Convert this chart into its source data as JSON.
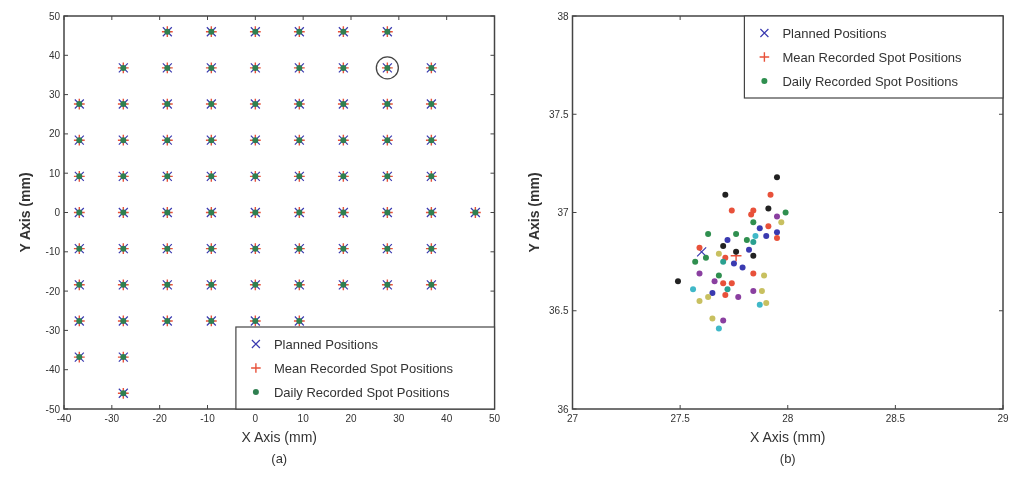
{
  "chart_data": [
    {
      "type": "scatter",
      "xlabel": "X Axis (mm)",
      "ylabel": "Y Axis (mm)",
      "annotations": [
        "(a)"
      ],
      "xlim": [
        -40,
        50
      ],
      "xticks": [
        -40,
        -30,
        -20,
        -10,
        0,
        10,
        20,
        30,
        40,
        50
      ],
      "ylim": [
        -50,
        50
      ],
      "yticks": [
        -50,
        -40,
        -30,
        -20,
        -10,
        0,
        10,
        20,
        30,
        40,
        50
      ],
      "legend": "bottom right",
      "grid": false,
      "series": [
        {
          "name": "Planned Positions",
          "color": "#3a3ab0",
          "marker": "x",
          "x": [
            -18.4,
            -9.2,
            0,
            9.2,
            18.4,
            27.6,
            -27.6,
            -18.4,
            -9.2,
            0,
            9.2,
            18.4,
            27.6,
            36.8,
            -36.8,
            -27.6,
            -18.4,
            -9.2,
            0,
            9.2,
            18.4,
            27.6,
            36.8,
            -36.8,
            -27.6,
            -18.4,
            -9.2,
            0,
            9.2,
            18.4,
            27.6,
            36.8,
            -36.8,
            -27.6,
            -18.4,
            -9.2,
            0,
            9.2,
            18.4,
            27.6,
            36.8,
            -36.8,
            -27.6,
            -18.4,
            -9.2,
            0,
            9.2,
            18.4,
            27.6,
            36.8,
            46,
            -36.8,
            -27.6,
            -18.4,
            -9.2,
            0,
            9.2,
            18.4,
            27.6,
            36.8,
            -36.8,
            -27.6,
            -18.4,
            -9.2,
            0,
            9.2,
            18.4,
            27.6,
            36.8,
            -36.8,
            -27.6,
            -18.4,
            -9.2,
            0,
            9.2,
            -36.8,
            -27.6,
            -27.6
          ],
          "values": [
            46,
            46,
            46,
            46,
            46,
            46,
            36.8,
            36.8,
            36.8,
            36.8,
            36.8,
            36.8,
            36.8,
            36.8,
            27.6,
            27.6,
            27.6,
            27.6,
            27.6,
            27.6,
            27.6,
            27.6,
            27.6,
            18.4,
            18.4,
            18.4,
            18.4,
            18.4,
            18.4,
            18.4,
            18.4,
            18.4,
            9.2,
            9.2,
            9.2,
            9.2,
            9.2,
            9.2,
            9.2,
            9.2,
            9.2,
            0,
            0,
            0,
            0,
            0,
            0,
            0,
            0,
            0,
            0,
            -9.2,
            -9.2,
            -9.2,
            -9.2,
            -9.2,
            -9.2,
            -9.2,
            -9.2,
            -9.2,
            -18.4,
            -18.4,
            -18.4,
            -18.4,
            -18.4,
            -18.4,
            -18.4,
            -18.4,
            -18.4,
            -27.6,
            -27.6,
            -27.6,
            -27.6,
            -27.6,
            -27.6,
            -36.8,
            -36.8,
            -46
          ]
        },
        {
          "name": "Mean Recorded Spot Positions",
          "color": "#e8513a",
          "marker": "cross",
          "x": [
            -18.4,
            -9.2,
            0,
            9.2,
            18.4,
            27.6,
            -27.6,
            -18.4,
            -9.2,
            0,
            9.2,
            18.4,
            27.6,
            36.8,
            -36.8,
            -27.6,
            -18.4,
            -9.2,
            0,
            9.2,
            18.4,
            27.6,
            36.8,
            -36.8,
            -27.6,
            -18.4,
            -9.2,
            0,
            9.2,
            18.4,
            27.6,
            36.8,
            -36.8,
            -27.6,
            -18.4,
            -9.2,
            0,
            9.2,
            18.4,
            27.6,
            36.8,
            -36.8,
            -27.6,
            -18.4,
            -9.2,
            0,
            9.2,
            18.4,
            27.6,
            36.8,
            46,
            -36.8,
            -27.6,
            -18.4,
            -9.2,
            0,
            9.2,
            18.4,
            27.6,
            36.8,
            -36.8,
            -27.6,
            -18.4,
            -9.2,
            0,
            9.2,
            18.4,
            27.6,
            36.8,
            -36.8,
            -27.6,
            -18.4,
            -9.2,
            0,
            9.2,
            -36.8,
            -27.6,
            -27.6
          ],
          "values": [
            46,
            46,
            46,
            46,
            46,
            46,
            36.8,
            36.8,
            36.8,
            36.8,
            36.8,
            36.8,
            36.8,
            36.8,
            27.6,
            27.6,
            27.6,
            27.6,
            27.6,
            27.6,
            27.6,
            27.6,
            27.6,
            18.4,
            18.4,
            18.4,
            18.4,
            18.4,
            18.4,
            18.4,
            18.4,
            18.4,
            9.2,
            9.2,
            9.2,
            9.2,
            9.2,
            9.2,
            9.2,
            9.2,
            9.2,
            0,
            0,
            0,
            0,
            0,
            0,
            0,
            0,
            0,
            0,
            -9.2,
            -9.2,
            -9.2,
            -9.2,
            -9.2,
            -9.2,
            -9.2,
            -9.2,
            -9.2,
            -18.4,
            -18.4,
            -18.4,
            -18.4,
            -18.4,
            -18.4,
            -18.4,
            -18.4,
            -18.4,
            -27.6,
            -27.6,
            -27.6,
            -27.6,
            -27.6,
            -27.6,
            -36.8,
            -36.8,
            -46
          ]
        },
        {
          "name": "Daily Recorded Spot Positions",
          "color": "#2f7f50",
          "marker": "circle",
          "x": [
            -18.4,
            -9.2,
            0,
            9.2,
            18.4,
            27.6,
            -27.6,
            -18.4,
            -9.2,
            0,
            9.2,
            18.4,
            27.6,
            36.8,
            -36.8,
            -27.6,
            -18.4,
            -9.2,
            0,
            9.2,
            18.4,
            27.6,
            36.8,
            -36.8,
            -27.6,
            -18.4,
            -9.2,
            0,
            9.2,
            18.4,
            27.6,
            36.8,
            -36.8,
            -27.6,
            -18.4,
            -9.2,
            0,
            9.2,
            18.4,
            27.6,
            36.8,
            -36.8,
            -27.6,
            -18.4,
            -9.2,
            0,
            9.2,
            18.4,
            27.6,
            36.8,
            46,
            -36.8,
            -27.6,
            -18.4,
            -9.2,
            0,
            9.2,
            18.4,
            27.6,
            36.8,
            -36.8,
            -27.6,
            -18.4,
            -9.2,
            0,
            9.2,
            18.4,
            27.6,
            36.8,
            -36.8,
            -27.6,
            -18.4,
            -9.2,
            0,
            9.2,
            -36.8,
            -27.6,
            -27.6
          ],
          "values": [
            46,
            46,
            46,
            46,
            46,
            46,
            36.8,
            36.8,
            36.8,
            36.8,
            36.8,
            36.8,
            36.8,
            36.8,
            27.6,
            27.6,
            27.6,
            27.6,
            27.6,
            27.6,
            27.6,
            27.6,
            27.6,
            18.4,
            18.4,
            18.4,
            18.4,
            18.4,
            18.4,
            18.4,
            18.4,
            18.4,
            9.2,
            9.2,
            9.2,
            9.2,
            9.2,
            9.2,
            9.2,
            9.2,
            9.2,
            0,
            0,
            0,
            0,
            0,
            0,
            0,
            0,
            0,
            0,
            -9.2,
            -9.2,
            -9.2,
            -9.2,
            -9.2,
            -9.2,
            -9.2,
            -9.2,
            -9.2,
            -18.4,
            -18.4,
            -18.4,
            -18.4,
            -18.4,
            -18.4,
            -18.4,
            -18.4,
            -18.4,
            -27.6,
            -27.6,
            -27.6,
            -27.6,
            -27.6,
            -27.6,
            -36.8,
            -36.8,
            -46
          ]
        }
      ]
    },
    {
      "type": "scatter",
      "xlabel": "X Axis (mm)",
      "ylabel": "Y Axis (mm)",
      "annotations": [
        "(b)"
      ],
      "xlim": [
        27,
        29
      ],
      "xticks": [
        27,
        27.5,
        28,
        28.5,
        29
      ],
      "ylim": [
        36,
        38
      ],
      "yticks": [
        36,
        36.5,
        37,
        37.5,
        38
      ],
      "legend": "top right",
      "grid": false,
      "series": [
        {
          "name": "Planned Positions",
          "color": "#3a3ab0",
          "marker": "x",
          "x": [
            27.6
          ],
          "values": [
            36.8
          ]
        },
        {
          "name": "Mean Recorded Spot Positions",
          "color": "#e8513a",
          "marker": "cross",
          "x": [
            27.76
          ],
          "values": [
            36.78
          ]
        },
        {
          "name": "Daily Recorded Spot Positions",
          "color": "#2f8f4f",
          "marker": "circle",
          "x": [
            27.95,
            27.71,
            27.92,
            27.74,
            27.91,
            27.99,
            27.84,
            27.95,
            27.83,
            27.84,
            27.91,
            27.97,
            27.87,
            27.95,
            27.9,
            27.95,
            27.85,
            27.81,
            27.76,
            27.72,
            27.63,
            27.84,
            27.7,
            27.82,
            27.76,
            27.59,
            27.62,
            27.57,
            27.68,
            27.71,
            27.84,
            27.7,
            27.75,
            27.79,
            27.59,
            27.68,
            27.84,
            27.89,
            27.49,
            27.66,
            27.7,
            27.74,
            27.56,
            27.65,
            27.72,
            27.71,
            27.77,
            27.84,
            27.88,
            27.59,
            27.63,
            27.9,
            27.87,
            27.65,
            27.7,
            27.68
          ],
          "values": [
            37.18,
            37.09,
            37.09,
            37.01,
            37.02,
            37,
            37.01,
            36.98,
            36.99,
            36.95,
            36.93,
            36.95,
            36.92,
            36.9,
            36.88,
            36.87,
            36.88,
            36.86,
            36.89,
            36.86,
            36.89,
            36.85,
            36.83,
            36.81,
            36.8,
            36.82,
            36.77,
            36.75,
            36.79,
            36.77,
            36.78,
            36.75,
            36.74,
            36.72,
            36.69,
            36.68,
            36.69,
            36.68,
            36.65,
            36.65,
            36.64,
            36.64,
            36.61,
            36.59,
            36.61,
            36.58,
            36.57,
            36.6,
            36.6,
            36.55,
            36.57,
            36.54,
            36.53,
            36.46,
            36.45,
            36.41
          ],
          "colors": [
            "#222222",
            "#222222",
            "#e8513a",
            "#e8513a",
            "#222222",
            "#2f8f4f",
            "#e8513a",
            "#8a3fa0",
            "#e8513a",
            "#2f8f4f",
            "#e8513a",
            "#c8c060",
            "#3a3ab0",
            "#3a3ab0",
            "#3a3ab0",
            "#e8513a",
            "#40b8c8",
            "#2f8f4f",
            "#2f8f4f",
            "#3a3ab0",
            "#2f8f4f",
            "#2aa090",
            "#222222",
            "#3a3ab0",
            "#222222",
            "#e8513a",
            "#2f8f4f",
            "#2f8f4f",
            "#c8c060",
            "#e8513a",
            "#222222",
            "#2aa090",
            "#3a3ab0",
            "#3a3ab0",
            "#8a3fa0",
            "#2f8f4f",
            "#e8513a",
            "#c8c060",
            "#222222",
            "#8a3fa0",
            "#e8513a",
            "#e8513a",
            "#40b8c8",
            "#3a3ab0",
            "#2aa090",
            "#e8513a",
            "#8a3fa0",
            "#8a3fa0",
            "#c8c060",
            "#c8c060",
            "#c8c060",
            "#c8c060",
            "#40b8c8",
            "#c8c060",
            "#8a3fa0",
            "#40b8c8"
          ]
        }
      ]
    }
  ]
}
